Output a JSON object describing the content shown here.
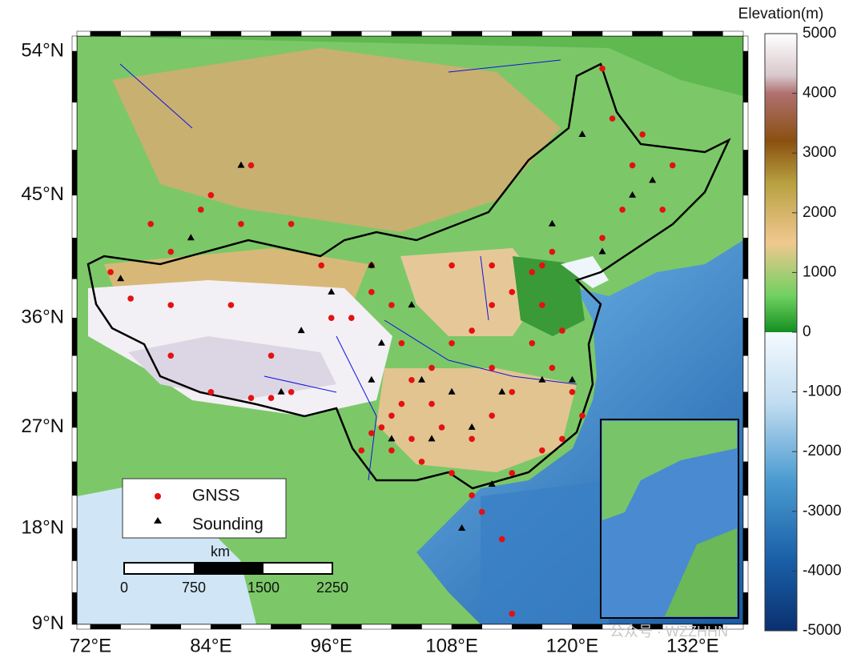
{
  "map": {
    "x_ticks": [
      {
        "value": 72,
        "label": "72°E"
      },
      {
        "value": 84,
        "label": "84°E"
      },
      {
        "value": 96,
        "label": "96°E"
      },
      {
        "value": 108,
        "label": "108°E"
      },
      {
        "value": 120,
        "label": "120°E"
      },
      {
        "value": 132,
        "label": "132°E"
      }
    ],
    "y_ticks": [
      {
        "value": 54,
        "label": "54°N"
      },
      {
        "value": 45,
        "label": "45°N"
      },
      {
        "value": 36,
        "label": "36°N"
      },
      {
        "value": 27,
        "label": "27°N"
      },
      {
        "value": 18,
        "label": "18°N"
      },
      {
        "value": 9,
        "label": "9°N"
      }
    ]
  },
  "colorbar": {
    "title": "Elevation(m)",
    "range": [
      -5000,
      5000
    ],
    "ticks": [
      5000,
      4000,
      3000,
      2000,
      1000,
      0,
      -1000,
      -2000,
      -3000,
      -4000,
      -5000
    ]
  },
  "legend": [
    {
      "label": "GNSS"
    },
    {
      "label": "Sounding"
    }
  ],
  "scale_bar": {
    "unit": "km",
    "labels": [
      "0",
      "750",
      "1500",
      "2250"
    ]
  },
  "watermark": "公众号 · WZZHHN"
}
